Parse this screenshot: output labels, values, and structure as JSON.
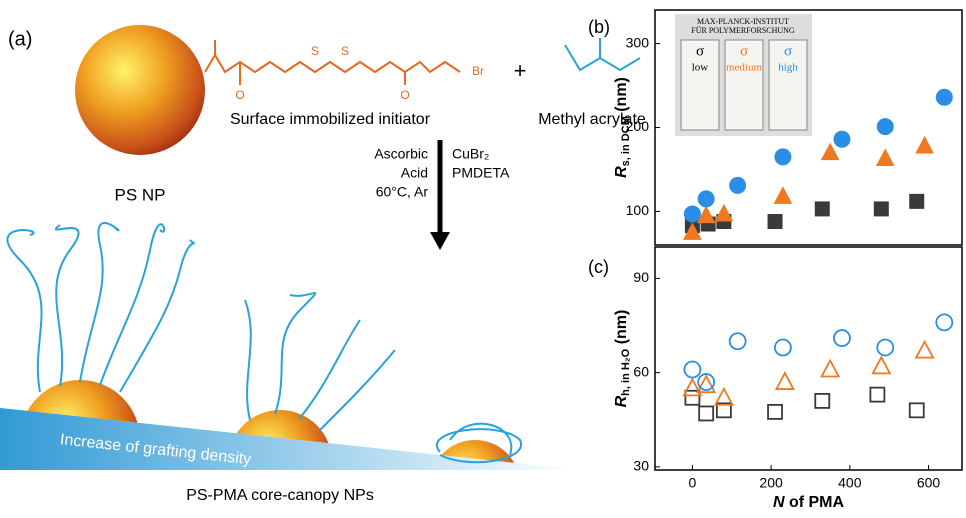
{
  "figure": {
    "panel_a": {
      "label": "(a)",
      "core": "PS NP",
      "plus": "+",
      "initiator": "Surface immobilized initiator",
      "monomer": "Methyl acrylate",
      "atoms": {
        "o": "O",
        "s": "S",
        "br": "Br"
      },
      "conditions_left": [
        "Ascorbic",
        "Acid",
        "60°C, Ar"
      ],
      "conditions_right": [
        "CuBr₂",
        "PMDETA"
      ],
      "wedge_text": "Increase of grafting density",
      "product": "PS-PMA core-canopy NPs"
    },
    "inset": {
      "header": [
        "MAX-PLANCK-INSTITUT",
        "FÜR POLYMERFORSCHUNG"
      ],
      "sigma": "σ",
      "levels": [
        "low",
        "medium",
        "high"
      ]
    }
  },
  "chart_data": [
    {
      "type": "scatter",
      "panel": "(b)",
      "y_label": {
        "main": "R",
        "sub": "s, in DCM",
        "unit": "(nm)"
      },
      "xlim": [
        -95,
        685
      ],
      "ylim": [
        60,
        340
      ],
      "yticks": [
        100,
        200,
        300
      ],
      "filled": true,
      "series": [
        {
          "marker": "square",
          "color": "#3a3a3a",
          "x": [
            0,
            40,
            80,
            210,
            330,
            480,
            570
          ],
          "values": [
            83,
            85,
            88,
            88,
            103,
            103,
            112
          ]
        },
        {
          "marker": "triangle",
          "color": "#f07820",
          "x": [
            0,
            35,
            80,
            230,
            350,
            490,
            590
          ],
          "values": [
            75,
            95,
            97,
            118,
            170,
            163,
            178
          ]
        },
        {
          "marker": "circle",
          "color": "#2a8ee6",
          "x": [
            0,
            35,
            115,
            230,
            380,
            490,
            640
          ],
          "values": [
            97,
            115,
            131,
            165,
            186,
            201,
            236
          ]
        }
      ]
    },
    {
      "type": "scatter",
      "panel": "(c)",
      "x_label": {
        "main": "N",
        "rest": "of PMA"
      },
      "y_label": {
        "main": "R",
        "sub": "h, in H₂O",
        "unit": "(nm)"
      },
      "xlim": [
        -95,
        685
      ],
      "ylim": [
        29,
        100
      ],
      "xticks": [
        0,
        200,
        400,
        600
      ],
      "yticks": [
        30,
        60,
        90
      ],
      "filled": false,
      "series": [
        {
          "marker": "square",
          "color": "#3a3a3a",
          "x": [
            0,
            35,
            80,
            210,
            330,
            470,
            570
          ],
          "values": [
            52,
            47,
            48,
            47.5,
            51,
            53,
            48
          ]
        },
        {
          "marker": "triangle",
          "color": "#f07820",
          "x": [
            0,
            35,
            80,
            235,
            350,
            480,
            590
          ],
          "values": [
            55,
            56,
            52,
            57,
            61,
            62,
            67
          ]
        },
        {
          "marker": "circle",
          "color": "#2a8ee6",
          "x": [
            0,
            35,
            115,
            230,
            380,
            490,
            640
          ],
          "values": [
            61,
            57,
            70,
            68,
            71,
            68,
            76
          ]
        }
      ]
    }
  ]
}
